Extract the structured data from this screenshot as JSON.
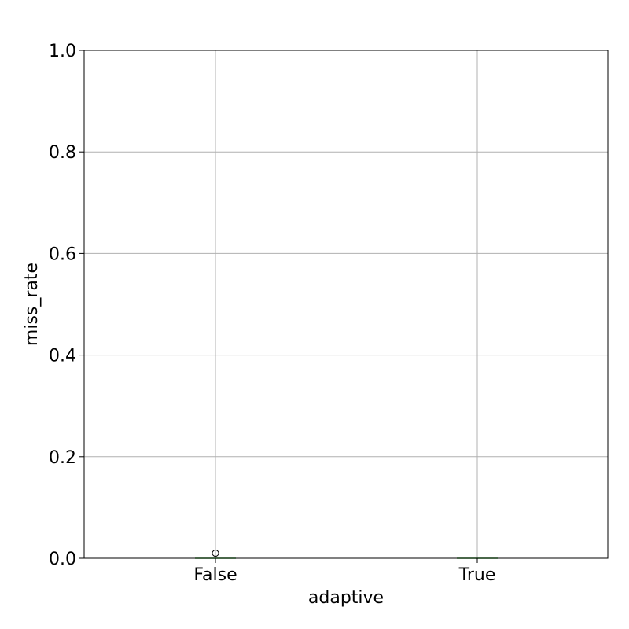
{
  "chart_data": {
    "type": "box",
    "title": "",
    "xlabel": "adaptive",
    "ylabel": "miss_rate",
    "categories": [
      "False",
      "True"
    ],
    "ylim": [
      0.0,
      1.0
    ],
    "yticks": [
      "0.0",
      "0.2",
      "0.4",
      "0.6",
      "0.8",
      "1.0"
    ],
    "grid": true,
    "boxes": [
      {
        "category": "False",
        "min": 0.0,
        "q1": 0.0,
        "median": 0.0,
        "q3": 0.0,
        "max": 0.0,
        "fliers": [
          0.01
        ]
      },
      {
        "category": "True",
        "min": 0.0,
        "q1": 0.0,
        "median": 0.0,
        "q3": 0.0,
        "max": 0.0,
        "fliers": []
      }
    ],
    "colors": {
      "box": "#1f77b4",
      "median": "#2ca02c",
      "grid": "#b0b0b0",
      "flier_edge": "#000000"
    }
  }
}
